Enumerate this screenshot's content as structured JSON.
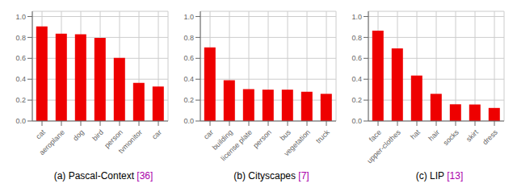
{
  "chart_data": [
    {
      "type": "bar",
      "title": "(a) Pascal-Context [36]",
      "categories": [
        "cat",
        "aeroplane",
        "dog",
        "bird",
        "person",
        "tvmonitor",
        "car"
      ],
      "values": [
        0.905,
        0.835,
        0.83,
        0.795,
        0.605,
        0.365,
        0.33
      ],
      "color": "#ee0000",
      "ylim": [
        0,
        1.05
      ],
      "yticks": [
        {
          "value": 0.0,
          "label": "0.0"
        },
        0.2,
        0.4,
        0.6,
        0.8,
        {
          "value": 1.0,
          "label": "1.0"
        }
      ],
      "grid": true
    },
    {
      "type": "bar",
      "title": "(b) Cityscapes [7]",
      "categories": [
        "car",
        "building",
        "license plate",
        "person",
        "bus",
        "vegetation",
        "truck"
      ],
      "values": [
        0.705,
        0.39,
        0.305,
        0.3,
        0.3,
        0.28,
        0.26
      ],
      "color": "#ee0000",
      "ylim": [
        0,
        1.05
      ],
      "yticks": [
        {
          "value": 0.0,
          "label": "0.0"
        },
        0.2,
        0.4,
        0.6,
        0.8,
        {
          "value": 1.0,
          "label": "1.0"
        }
      ],
      "grid": true
    },
    {
      "type": "bar",
      "title": "(c) LIP [13]",
      "categories": [
        "face",
        "upper-clothes",
        "hat",
        "hair",
        "socks",
        "skirt",
        "dress"
      ],
      "values": [
        0.865,
        0.695,
        0.435,
        0.26,
        0.16,
        0.158,
        0.125
      ],
      "color": "#ee0000",
      "ylim": [
        0,
        1.05
      ],
      "yticks": [
        {
          "value": 0.0,
          "label": "0.0"
        },
        0.2,
        0.4,
        0.6,
        0.8,
        {
          "value": 1.0,
          "label": "1.0"
        }
      ],
      "grid": true
    }
  ]
}
